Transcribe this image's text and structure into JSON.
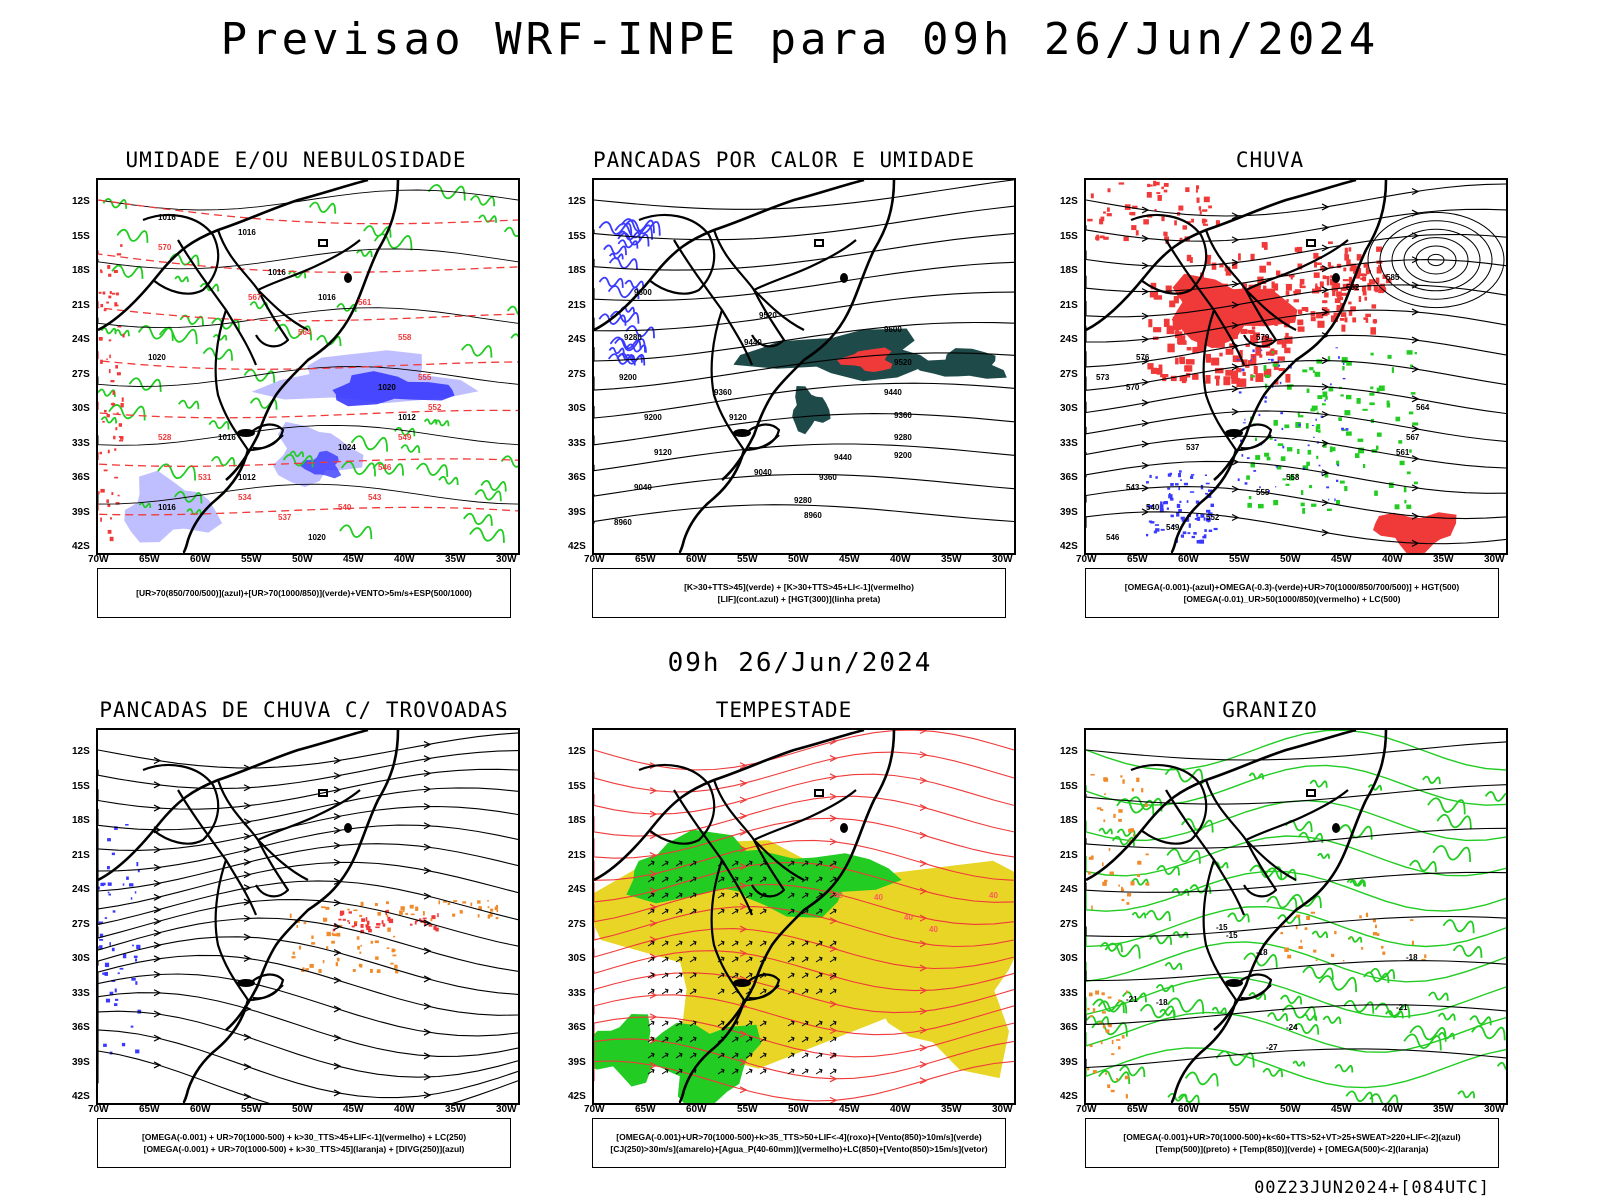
{
  "main_title": "Previsao WRF-INPE  para 09h 26/Jun/2024",
  "mid_title": "09h 26/Jun/2024",
  "footer": "00Z23JUN2024+[084UTC]",
  "lat_ticks": [
    "12S",
    "15S",
    "18S",
    "21S",
    "24S",
    "27S",
    "30S",
    "33S",
    "36S",
    "39S",
    "42S"
  ],
  "lon_ticks": [
    "70W",
    "65W",
    "60W",
    "55W",
    "50W",
    "45W",
    "40W",
    "35W",
    "30W"
  ],
  "panels": [
    {
      "title": "UMIDADE E/OU NEBULOSIDADE",
      "legend": [
        "[UR>70(850/700/500)](azul)+[UR>70(1000/850)](verde)+VENTO>5m/s+ESP(500/1000)"
      ],
      "contour_labels": [
        "1016",
        "1016",
        "1016",
        "1016",
        "1020",
        "1020",
        "1024",
        "1012",
        "1016",
        "1020",
        "1012",
        "1016",
        "570",
        "567",
        "564",
        "561",
        "558",
        "555",
        "552",
        "549",
        "546",
        "543",
        "540",
        "537",
        "534",
        "531",
        "528"
      ]
    },
    {
      "title": "PANCADAS POR CALOR E UMIDADE",
      "legend": [
        "[K>30+TTS>45](verde) + [K>30+TTS>45+LI<-1](vermelho)",
        "[LIF](cont.azul) + [HGT(300)](linha preta)"
      ],
      "contour_labels": [
        "9600",
        "9520",
        "9440",
        "9600",
        "9520",
        "9440",
        "9360",
        "9280",
        "9200",
        "9440",
        "9360",
        "9280",
        "9200",
        "9120",
        "9040",
        "8960",
        "9200",
        "9280",
        "9360",
        "9120",
        "9040",
        "8960"
      ]
    },
    {
      "title": "CHUVA",
      "legend": [
        "[OMEGA(-0.001)-(azul)+OMEGA(-0.3)-(verde)+UR>70(1000/850/700/500)] + HGT(500)",
        "[OMEGA(-0.01)_UR>50(1000/850)(vermelho) + LC(500)"
      ],
      "contour_labels": [
        "585",
        "582",
        "579",
        "576",
        "573",
        "570",
        "567",
        "564",
        "561",
        "558",
        "555",
        "552",
        "549",
        "546",
        "543",
        "540",
        "537"
      ]
    },
    {
      "title": "PANCADAS DE CHUVA C/ TROVOADAS",
      "legend": [
        "[OMEGA(-0.001) + UR>70(1000-500) + k>30_TTS>45+LIF<-1](vermelho) + LC(250)",
        "[OMEGA(-0.001) + UR>70(1000-500) + k>30_TTS>45](laranja) + [DIVG(250)](azul)"
      ],
      "contour_labels": []
    },
    {
      "title": "TEMPESTADE",
      "legend": [
        "[OMEGA(-0.001)+UR>70(1000-500)+k>35_TTS>50+LIF<-4](roxo)+[Vento(850)>10m/s](verde)",
        "[CJ(250)>30m/s](amarelo)+[Agua_P(40-60mm)](vermelho)+LC(850)+[Vento(850)>15m/s](vetor)"
      ],
      "contour_labels": [
        "40",
        "40",
        "40",
        "40",
        "40"
      ]
    },
    {
      "title": "GRANIZO",
      "legend": [
        "[OMEGA(-0.001)+UR>70(1000-500)+k<60+TTS>52+VT>25+SWEAT>220+LIF<-2](azul)",
        "[Temp(500)](preto) + [Temp(850)](verde) + [OMEGA(500)<-2](laranja)"
      ],
      "contour_labels": [
        "-15",
        "-18",
        "-18",
        "-21",
        "-21",
        "-24",
        "-27",
        "-18",
        "-15"
      ]
    }
  ],
  "colors": {
    "black": "#000000",
    "blue": "#3a3aff",
    "lightblue": "#9a9aff",
    "green": "#22cc22",
    "red": "#f03a3a",
    "darkteal": "#1f4a4a",
    "yellow": "#e8d526",
    "orange": "#f08a2a",
    "pink": "#ff5a5a"
  }
}
